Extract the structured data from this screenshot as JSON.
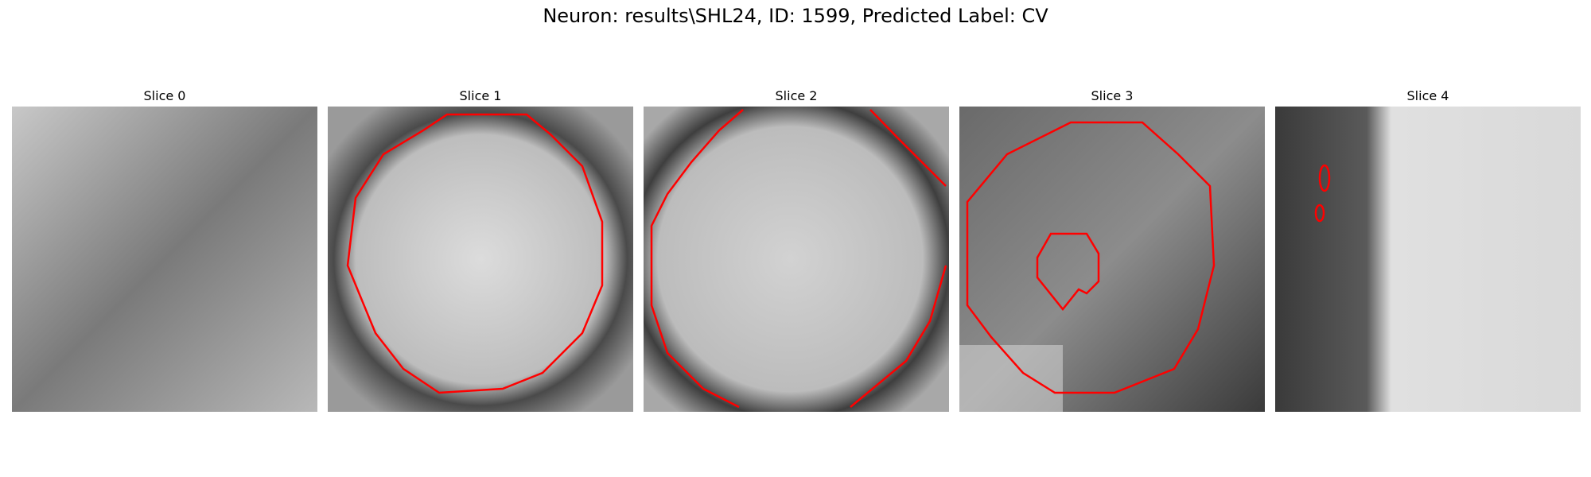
{
  "figure": {
    "title": "Neuron: results\\SHL24, ID: 1599, Predicted Label: CV"
  },
  "slices": [
    {
      "title": "Slice 0",
      "image": "grayscale-em-patch",
      "contours": 0
    },
    {
      "title": "Slice 1",
      "image": "grayscale-em-patch",
      "contours": 1
    },
    {
      "title": "Slice 2",
      "image": "grayscale-em-patch",
      "contours": 2
    },
    {
      "title": "Slice 3",
      "image": "grayscale-em-patch",
      "contours": 2
    },
    {
      "title": "Slice 4",
      "image": "grayscale-em-patch",
      "contours": 2
    }
  ],
  "colors": {
    "contour": "#ff0000",
    "background": "#ffffff"
  }
}
